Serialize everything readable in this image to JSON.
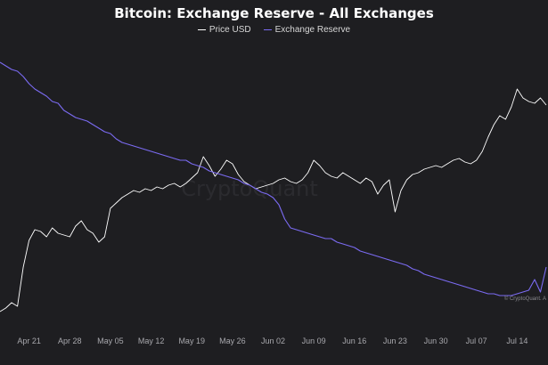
{
  "colors": {
    "background": "#1e1e21",
    "price": "#ffffff",
    "reserve": "#7b6bf2",
    "axis_text": "#a8a8ad"
  },
  "watermark": "CryptoQuant",
  "credit": "© CryptoQuant. A",
  "chart_data": {
    "type": "line",
    "title": "Bitcoin: Exchange Reserve - All Exchanges",
    "legend_position": "top-center",
    "grid": false,
    "x_tick_labels": [
      "Apr 21",
      "Apr 28",
      "May 05",
      "May 12",
      "May 19",
      "May 26",
      "Jun 02",
      "Jun 09",
      "Jun 16",
      "Jun 23",
      "Jun 30",
      "Jul 07",
      "Jul 14"
    ],
    "x": [
      "Apr 16",
      "Apr 17",
      "Apr 18",
      "Apr 19",
      "Apr 20",
      "Apr 21",
      "Apr 22",
      "Apr 23",
      "Apr 24",
      "Apr 25",
      "Apr 26",
      "Apr 27",
      "Apr 28",
      "Apr 29",
      "Apr 30",
      "May 01",
      "May 02",
      "May 03",
      "May 04",
      "May 05",
      "May 06",
      "May 07",
      "May 08",
      "May 09",
      "May 10",
      "May 11",
      "May 12",
      "May 13",
      "May 14",
      "May 15",
      "May 16",
      "May 17",
      "May 18",
      "May 19",
      "May 20",
      "May 21",
      "May 22",
      "May 23",
      "May 24",
      "May 25",
      "May 26",
      "May 27",
      "May 28",
      "May 29",
      "May 30",
      "May 31",
      "Jun 01",
      "Jun 02",
      "Jun 03",
      "Jun 04",
      "Jun 05",
      "Jun 06",
      "Jun 07",
      "Jun 08",
      "Jun 09",
      "Jun 10",
      "Jun 11",
      "Jun 12",
      "Jun 13",
      "Jun 14",
      "Jun 15",
      "Jun 16",
      "Jun 17",
      "Jun 18",
      "Jun 19",
      "Jun 20",
      "Jun 21",
      "Jun 22",
      "Jun 23",
      "Jun 24",
      "Jun 25",
      "Jun 26",
      "Jun 27",
      "Jun 28",
      "Jun 29",
      "Jun 30",
      "Jul 01",
      "Jul 02",
      "Jul 03",
      "Jul 04",
      "Jul 05",
      "Jul 06",
      "Jul 07",
      "Jul 08",
      "Jul 09",
      "Jul 10",
      "Jul 11",
      "Jul 12",
      "Jul 13",
      "Jul 14",
      "Jul 15",
      "Jul 16",
      "Jul 17",
      "Jul 18",
      "Jul 19"
    ],
    "series": [
      {
        "name": "Price USD",
        "color": "#ffffff",
        "values": [
          0.1,
          0.12,
          0.15,
          0.13,
          0.35,
          0.5,
          0.56,
          0.55,
          0.52,
          0.57,
          0.54,
          0.53,
          0.52,
          0.58,
          0.61,
          0.56,
          0.54,
          0.49,
          0.52,
          0.68,
          0.71,
          0.74,
          0.76,
          0.78,
          0.77,
          0.79,
          0.78,
          0.8,
          0.79,
          0.81,
          0.82,
          0.8,
          0.82,
          0.85,
          0.88,
          0.97,
          0.92,
          0.86,
          0.9,
          0.95,
          0.93,
          0.87,
          0.83,
          0.81,
          0.79,
          0.8,
          0.81,
          0.82,
          0.84,
          0.85,
          0.83,
          0.82,
          0.84,
          0.88,
          0.95,
          0.92,
          0.88,
          0.86,
          0.85,
          0.88,
          0.86,
          0.84,
          0.82,
          0.85,
          0.83,
          0.76,
          0.81,
          0.84,
          0.66,
          0.78,
          0.84,
          0.87,
          0.88,
          0.9,
          0.91,
          0.92,
          0.91,
          0.93,
          0.95,
          0.96,
          0.94,
          0.93,
          0.95,
          1.0,
          1.08,
          1.15,
          1.2,
          1.18,
          1.25,
          1.35,
          1.3,
          1.28,
          1.27,
          1.3,
          1.26
        ]
      },
      {
        "name": "Exchange Reserve",
        "color": "#7b6bf2",
        "values": [
          1.5,
          1.48,
          1.46,
          1.45,
          1.42,
          1.38,
          1.35,
          1.33,
          1.31,
          1.28,
          1.27,
          1.23,
          1.21,
          1.19,
          1.18,
          1.17,
          1.15,
          1.13,
          1.11,
          1.1,
          1.07,
          1.05,
          1.04,
          1.03,
          1.02,
          1.01,
          1.0,
          0.99,
          0.98,
          0.97,
          0.96,
          0.95,
          0.95,
          0.93,
          0.92,
          0.91,
          0.89,
          0.88,
          0.87,
          0.86,
          0.85,
          0.84,
          0.82,
          0.81,
          0.79,
          0.77,
          0.76,
          0.74,
          0.7,
          0.62,
          0.57,
          0.56,
          0.55,
          0.54,
          0.53,
          0.52,
          0.51,
          0.51,
          0.49,
          0.48,
          0.47,
          0.46,
          0.44,
          0.43,
          0.42,
          0.41,
          0.4,
          0.39,
          0.38,
          0.37,
          0.36,
          0.34,
          0.33,
          0.31,
          0.3,
          0.29,
          0.28,
          0.27,
          0.26,
          0.25,
          0.24,
          0.23,
          0.22,
          0.21,
          0.2,
          0.2,
          0.19,
          0.19,
          0.19,
          0.2,
          0.21,
          0.22,
          0.28,
          0.21,
          0.35
        ]
      }
    ]
  }
}
